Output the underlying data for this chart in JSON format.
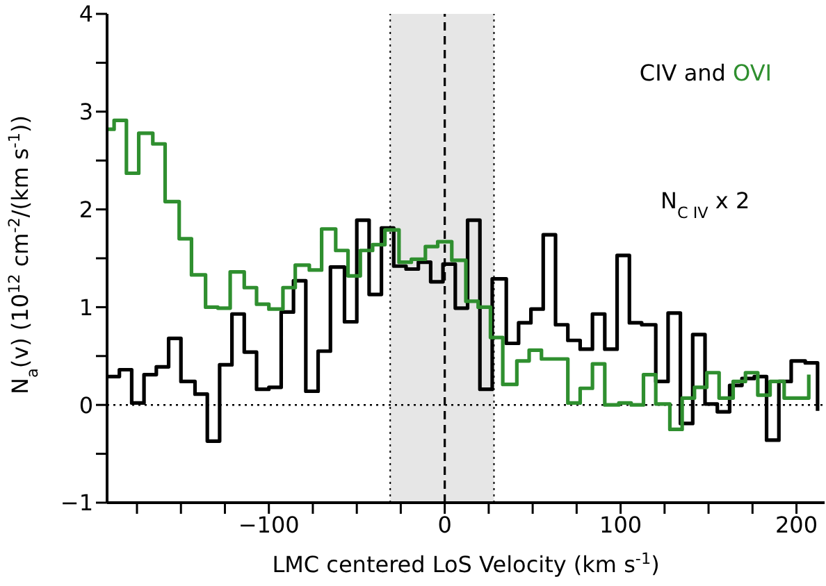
{
  "chart_data": {
    "type": "step",
    "xlabel": "LMC centered LoS Velocity (km s$^{-1}$)",
    "ylabel": "N$_{a}$(v)  (10$^{12}$ cm$^{-2}$/(km s$^{-1}$))",
    "annotations": [
      "and",
      "N$_{C IV}$ x 2"
    ],
    "legend": "top right",
    "series": [
      {
        "name": "CIV",
        "color": "#000000",
        "x": [
          -192,
          -185,
          -178,
          -171,
          -164,
          -157,
          -150,
          -142,
          -135,
          -128,
          -121,
          -114,
          -107,
          -100,
          -93,
          -86,
          -79,
          -72,
          -65,
          -57,
          -50,
          -43,
          -36,
          -29,
          -22,
          -15,
          -8,
          -1,
          6,
          13,
          20,
          27,
          35,
          42,
          49,
          56,
          63,
          70,
          77,
          84,
          91,
          98,
          105,
          112,
          120,
          127,
          134,
          141,
          148,
          155,
          162,
          169,
          176,
          183,
          190,
          197,
          205,
          212
        ],
        "values": [
          0.29,
          0.36,
          0.02,
          0.31,
          0.39,
          0.68,
          0.24,
          0.11,
          -0.37,
          0.41,
          0.93,
          0.54,
          0.16,
          0.18,
          0.95,
          1.27,
          0.14,
          0.55,
          1.41,
          0.85,
          1.89,
          1.13,
          1.81,
          1.42,
          1.39,
          1.46,
          1.26,
          1.44,
          0.99,
          1.89,
          0.16,
          1.29,
          0.63,
          0.84,
          0.98,
          1.74,
          0.82,
          0.66,
          0.57,
          0.93,
          0.57,
          1.53,
          0.84,
          0.82,
          0.24,
          0.94,
          -0.19,
          0.72,
          0.01,
          -0.07,
          0.2,
          0.27,
          0.29,
          -0.36,
          0.24,
          0.45,
          0.43,
          -0.06
        ]
      },
      {
        "name": "OVI",
        "color": "#2f8f2f",
        "x": [
          -192,
          -188,
          -181,
          -174,
          -166,
          -159,
          -151,
          -144,
          -136,
          -129,
          -122,
          -114,
          -107,
          -100,
          -92,
          -85,
          -77,
          -70,
          -62,
          -55,
          -48,
          -41,
          -34,
          -26,
          -19,
          -11,
          -4,
          4,
          12,
          19,
          26,
          33,
          41,
          48,
          55,
          63,
          70,
          77,
          84,
          91,
          99,
          106,
          113,
          120,
          128,
          135,
          142,
          149,
          156,
          164,
          171,
          178,
          185,
          193,
          200,
          207
        ],
        "values": [
          2.82,
          2.91,
          2.37,
          2.78,
          2.67,
          2.08,
          1.7,
          1.33,
          1.0,
          0.99,
          1.36,
          1.2,
          1.03,
          0.98,
          1.2,
          1.43,
          1.38,
          1.8,
          1.58,
          1.32,
          1.58,
          1.64,
          1.79,
          1.46,
          1.49,
          1.62,
          1.67,
          1.48,
          1.06,
          1.0,
          0.69,
          0.21,
          0.45,
          0.56,
          0.47,
          0.47,
          0.02,
          0.17,
          0.42,
          0.0,
          0.02,
          0.0,
          0.31,
          0.01,
          -0.25,
          0.07,
          0.18,
          0.33,
          0.07,
          0.24,
          0.33,
          0.1,
          0.24,
          0.07,
          0.07,
          0.31
        ]
      }
    ],
    "xlim": [
      -192,
      216
    ],
    "xticks": [
      {
        "value": -175,
        "label": null
      },
      {
        "value": -150,
        "label": null
      },
      {
        "value": -125,
        "label": null
      },
      {
        "value": -100,
        "label": "−100"
      },
      {
        "value": -75,
        "label": null
      },
      {
        "value": -50,
        "label": null
      },
      {
        "value": -25,
        "label": null
      },
      0,
      {
        "value": 25,
        "label": null
      },
      {
        "value": 50,
        "label": null
      },
      {
        "value": 75,
        "label": null
      },
      100,
      {
        "value": 125,
        "label": null
      },
      {
        "value": 150,
        "label": null
      },
      {
        "value": 175,
        "label": null
      },
      200
    ],
    "ylim": [
      -1,
      4
    ],
    "yticks": [
      {
        "value": -1,
        "label": "−1"
      },
      {
        "value": -0.5,
        "label": null
      },
      0,
      {
        "value": 0.5,
        "label": null
      },
      1,
      {
        "value": 1.5,
        "label": null
      },
      2,
      {
        "value": 2.5,
        "label": null
      },
      3,
      {
        "value": 3.5,
        "label": null
      },
      4
    ],
    "ref_lines": [
      {
        "axis": "x",
        "value": 0,
        "line_style": "dashed",
        "color": "#000000"
      },
      {
        "axis": "y",
        "value": 0,
        "line_style": "dotted",
        "color": "#000000"
      },
      {
        "axis": "x",
        "value": -31,
        "line_style": "dotted",
        "color": "#000000"
      },
      {
        "axis": "x",
        "value": 28,
        "line_style": "dotted",
        "color": "#000000"
      }
    ],
    "bands": [
      {
        "axis": "x",
        "from": -31,
        "to": 28,
        "color": "#e6e6e6"
      }
    ]
  }
}
